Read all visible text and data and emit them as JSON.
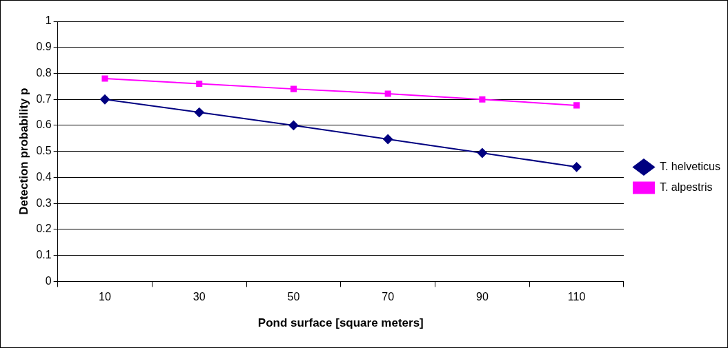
{
  "chart_data": {
    "type": "line",
    "xlabel": "Pond surface [square meters]",
    "ylabel": "Detection probability p",
    "categories": [
      "10",
      "30",
      "50",
      "70",
      "90",
      "110"
    ],
    "series": [
      {
        "name": "T. helveticus",
        "color": "#000080",
        "marker": "diamond",
        "values": [
          0.7,
          0.65,
          0.6,
          0.547,
          0.494,
          0.44
        ]
      },
      {
        "name": "T. alpestris",
        "color": "#ff00ff",
        "marker": "square",
        "values": [
          0.78,
          0.76,
          0.74,
          0.722,
          0.7,
          0.677
        ]
      }
    ],
    "ylim": [
      0,
      1
    ],
    "yticks": [
      0,
      0.1,
      0.2,
      0.3,
      0.4,
      0.5,
      0.6,
      0.7,
      0.8,
      0.9,
      1
    ],
    "grid": "y",
    "legend": "right",
    "line_style": "solid"
  }
}
